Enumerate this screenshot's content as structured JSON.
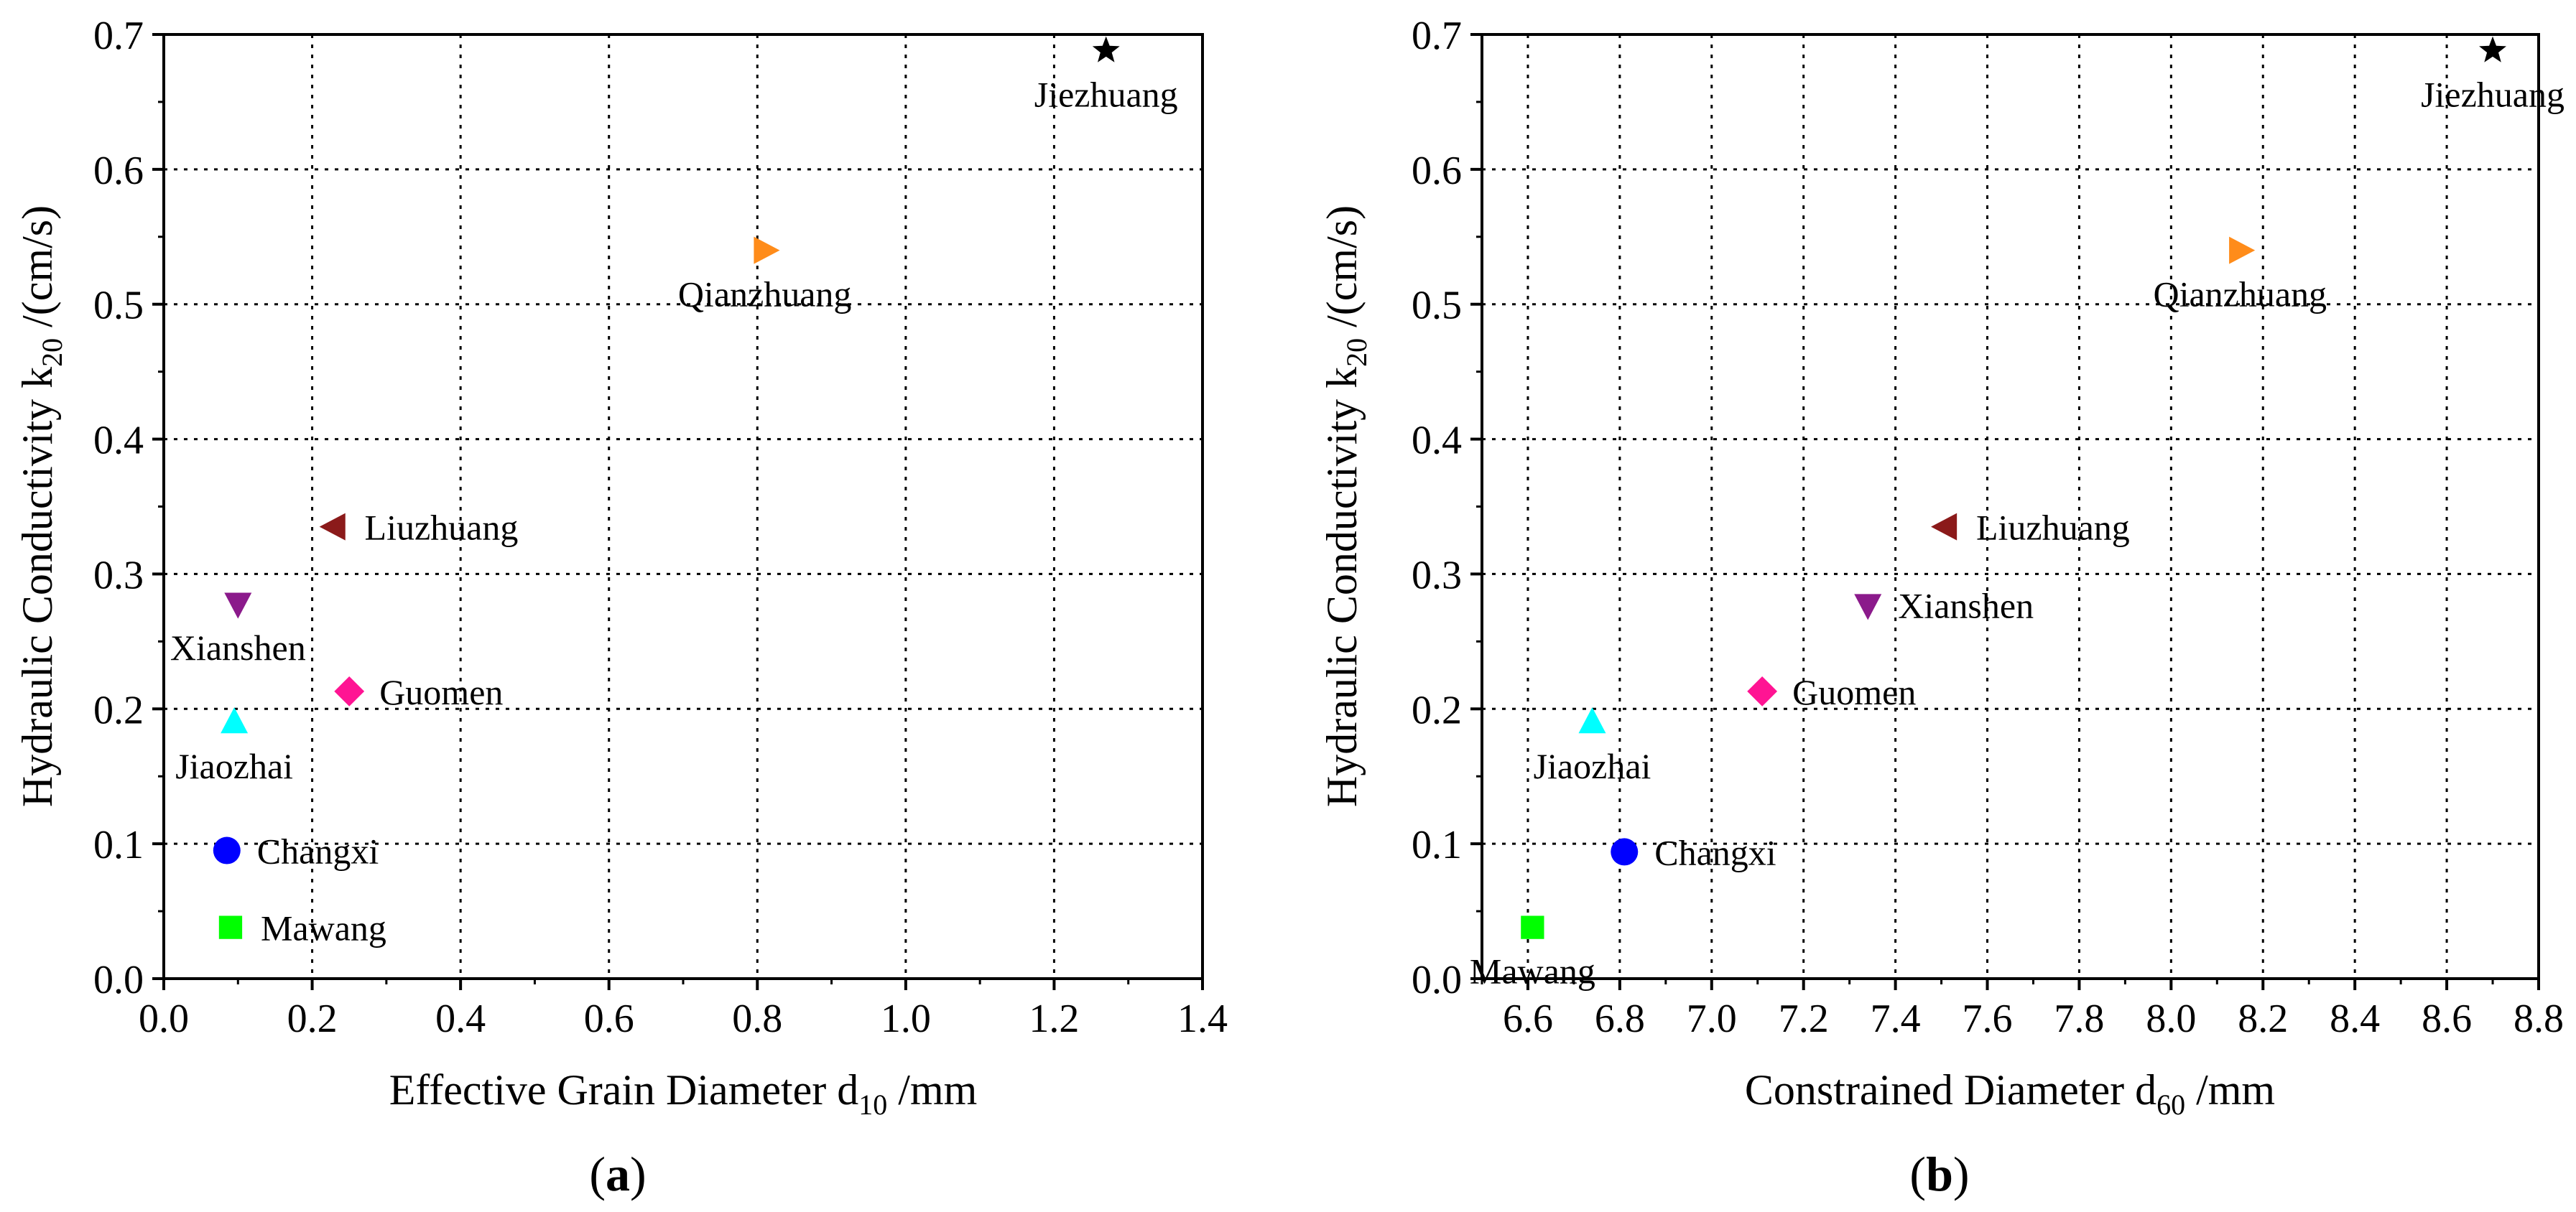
{
  "chart_data": [
    {
      "type": "scatter",
      "panel_label": "a",
      "xlabel": {
        "main": "Effective Grain Diameter d",
        "sub": "10",
        "unit": " /mm"
      },
      "ylabel": {
        "main": "Hydraulic Conductivity k",
        "sub": "20",
        "unit": " /(cm/s)"
      },
      "xlim": [
        0.0,
        1.4
      ],
      "ylim": [
        0.0,
        0.7
      ],
      "xticks": [
        "0.0",
        "0.2",
        "0.4",
        "0.6",
        "0.8",
        "1.0",
        "1.2",
        "1.4"
      ],
      "yticks": [
        "0.0",
        "0.1",
        "0.2",
        "0.3",
        "0.4",
        "0.5",
        "0.6",
        "0.7"
      ],
      "grid": true,
      "points": [
        {
          "name": "Jiezhuang",
          "x": 1.27,
          "y": 0.688,
          "marker": "star",
          "color": "#000000",
          "label_pos": "below"
        },
        {
          "name": "Qianzhuang",
          "x": 0.81,
          "y": 0.54,
          "marker": "triangle-right",
          "color": "#FF8C1A",
          "label_pos": "below"
        },
        {
          "name": "Liuzhuang",
          "x": 0.23,
          "y": 0.335,
          "marker": "triangle-left",
          "color": "#8B1A1A",
          "label_pos": "right"
        },
        {
          "name": "Xianshen",
          "x": 0.1,
          "y": 0.278,
          "marker": "triangle-down",
          "color": "#8B1A8B",
          "label_pos": "below"
        },
        {
          "name": "Guomen",
          "x": 0.25,
          "y": 0.213,
          "marker": "diamond",
          "color": "#FF1493",
          "label_pos": "right"
        },
        {
          "name": "Jiaozhai",
          "x": 0.095,
          "y": 0.19,
          "marker": "triangle-up",
          "color": "#00FFFF",
          "label_pos": "below"
        },
        {
          "name": "Changxi",
          "x": 0.085,
          "y": 0.095,
          "marker": "circle",
          "color": "#0000FF",
          "label_pos": "right"
        },
        {
          "name": "Mawang",
          "x": 0.09,
          "y": 0.038,
          "marker": "square",
          "color": "#00FF00",
          "label_pos": "right"
        }
      ]
    },
    {
      "type": "scatter",
      "panel_label": "b",
      "xlabel": {
        "main": "Constrained Diameter d",
        "sub": "60",
        "unit": " /mm"
      },
      "ylabel": {
        "main": "Hydraulic Conductivity k",
        "sub": "20",
        "unit": " /(cm/s)"
      },
      "xlim": [
        6.5,
        8.8
      ],
      "ylim": [
        0.0,
        0.7
      ],
      "xticks": [
        "6.6",
        "6.8",
        "7.0",
        "7.2",
        "7.4",
        "7.6",
        "7.8",
        "8.0",
        "8.2",
        "8.4",
        "8.6",
        "8.8"
      ],
      "yticks": [
        "0.0",
        "0.1",
        "0.2",
        "0.3",
        "0.4",
        "0.5",
        "0.6",
        "0.7"
      ],
      "grid": true,
      "points": [
        {
          "name": "Jiezhuang",
          "x": 8.7,
          "y": 0.688,
          "marker": "star",
          "color": "#000000",
          "label_pos": "below"
        },
        {
          "name": "Qianzhuang",
          "x": 8.15,
          "y": 0.54,
          "marker": "triangle-right",
          "color": "#FF8C1A",
          "label_pos": "below"
        },
        {
          "name": "Liuzhuang",
          "x": 7.51,
          "y": 0.335,
          "marker": "triangle-left",
          "color": "#8B1A1A",
          "label_pos": "right"
        },
        {
          "name": "Xianshen",
          "x": 7.34,
          "y": 0.277,
          "marker": "triangle-down",
          "color": "#8B1A8B",
          "label_pos": "right"
        },
        {
          "name": "Guomen",
          "x": 7.11,
          "y": 0.213,
          "marker": "diamond",
          "color": "#FF1493",
          "label_pos": "right"
        },
        {
          "name": "Jiaozhai",
          "x": 6.74,
          "y": 0.19,
          "marker": "triangle-up",
          "color": "#00FFFF",
          "label_pos": "below"
        },
        {
          "name": "Changxi",
          "x": 6.81,
          "y": 0.094,
          "marker": "circle",
          "color": "#0000FF",
          "label_pos": "right"
        },
        {
          "name": "Mawang",
          "x": 6.61,
          "y": 0.038,
          "marker": "square",
          "color": "#00FF00",
          "label_pos": "below"
        }
      ]
    }
  ]
}
